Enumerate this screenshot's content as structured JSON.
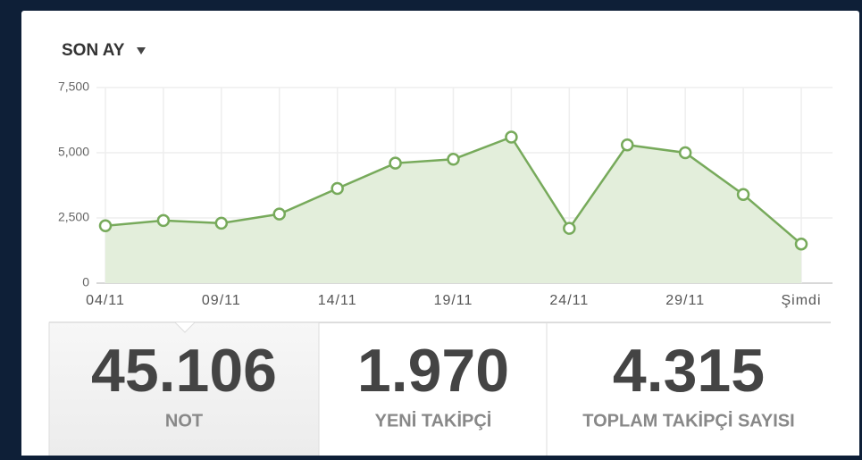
{
  "header": {
    "period": "SON AY"
  },
  "chart_data": {
    "type": "area",
    "categories": [
      "04/11",
      null,
      "09/11",
      null,
      "14/11",
      null,
      "19/11",
      null,
      "24/11",
      null,
      "29/11",
      null,
      "Şimdi"
    ],
    "values": [
      2200,
      2400,
      2300,
      2650,
      3630,
      4600,
      4750,
      5600,
      2100,
      5300,
      5000,
      3400,
      1500
    ],
    "color": "#77aa5b",
    "fill": "#e3eedb",
    "ylim": [
      0,
      7500
    ],
    "yticks": [
      0,
      {
        "value": 2500,
        "label": "2,500"
      },
      {
        "value": 5000,
        "label": "5,000"
      },
      {
        "value": 7500,
        "label": "7,500"
      }
    ],
    "grid": true
  },
  "stats": [
    {
      "value": "45.106",
      "label": "NOT"
    },
    {
      "value": "1.970",
      "label": "YENİ TAKİPÇİ"
    },
    {
      "value": "4.315",
      "label": "TOPLAM TAKİPÇİ SAYISI"
    }
  ]
}
